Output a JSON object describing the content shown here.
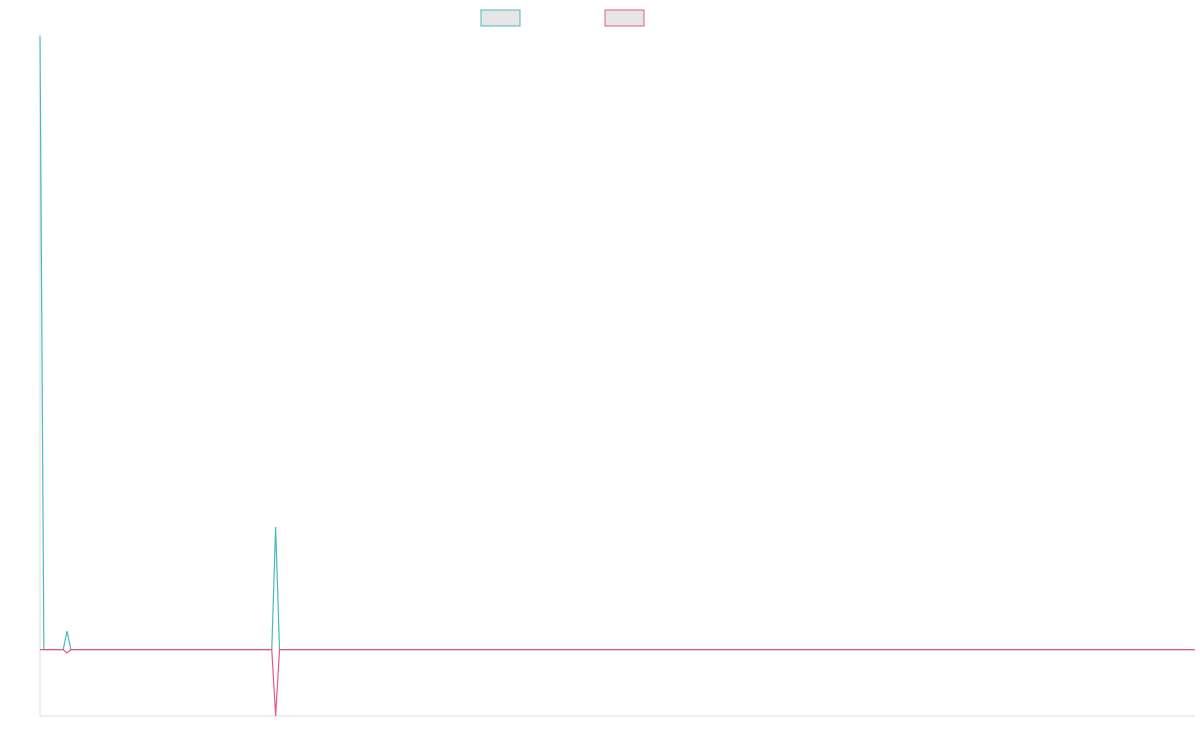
{
  "chart_data": {
    "type": "line",
    "title": "",
    "xlabel": "",
    "ylabel": "",
    "grid": false,
    "legend_position": "top-center",
    "x_count": 300,
    "ylim": [
      -1,
      9.25
    ],
    "series": [
      {
        "color": "#4bb8c0",
        "fill": "#e6e6e6",
        "points": [
          {
            "x": 0,
            "y": 9.25
          },
          {
            "x": 1,
            "y": 0
          },
          {
            "x": 6,
            "y": 0
          },
          {
            "x": 7,
            "y": 0.28
          },
          {
            "x": 8,
            "y": 0
          },
          {
            "x": 60,
            "y": 0
          },
          {
            "x": 61,
            "y": 1.85
          },
          {
            "x": 62,
            "y": 0
          },
          {
            "x": 299,
            "y": 0
          }
        ]
      },
      {
        "color": "#e8587e",
        "fill": "#e6e6e6",
        "points": [
          {
            "x": 0,
            "y": 0
          },
          {
            "x": 6,
            "y": 0
          },
          {
            "x": 7,
            "y": -0.05
          },
          {
            "x": 8,
            "y": 0
          },
          {
            "x": 60,
            "y": 0
          },
          {
            "x": 61,
            "y": -1
          },
          {
            "x": 62,
            "y": 0
          },
          {
            "x": 299,
            "y": 0
          }
        ]
      }
    ]
  }
}
